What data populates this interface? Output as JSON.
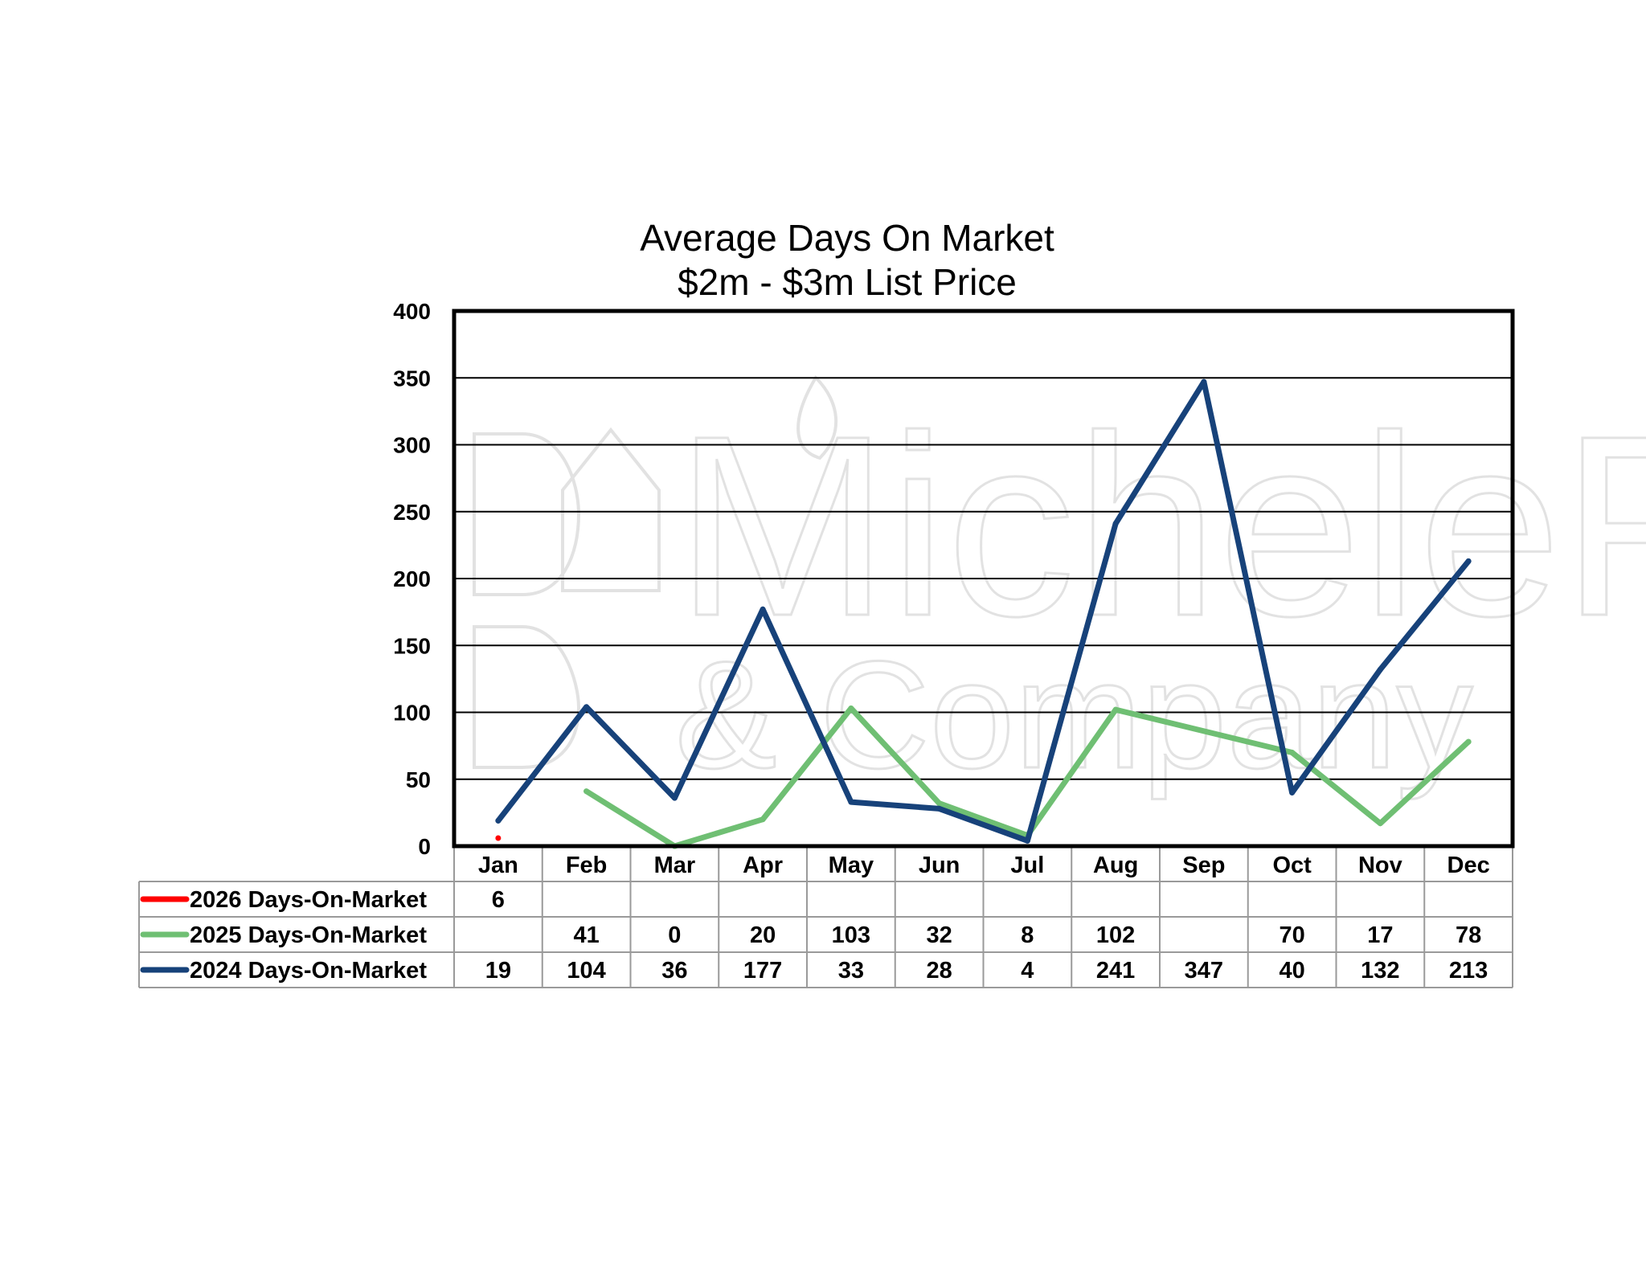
{
  "chart_data": {
    "type": "line",
    "title": [
      "Average Days On Market",
      "$2m - $3m List Price"
    ],
    "categories": [
      "Jan",
      "Feb",
      "Mar",
      "Apr",
      "May",
      "Jun",
      "Jul",
      "Aug",
      "Sep",
      "Oct",
      "Nov",
      "Dec"
    ],
    "ylim": [
      0,
      400
    ],
    "yticks": [
      0,
      50,
      100,
      150,
      200,
      250,
      300,
      350,
      400
    ],
    "grid": true,
    "legend": "data-table-left",
    "series": [
      {
        "name": "2026 Days-On-Market",
        "color": "#ff0000",
        "values": [
          6,
          null,
          null,
          null,
          null,
          null,
          null,
          null,
          null,
          null,
          null,
          null
        ]
      },
      {
        "name": "2025 Days-On-Market",
        "color": "#6fbf73",
        "values": [
          null,
          41,
          0,
          20,
          103,
          32,
          8,
          102,
          null,
          70,
          17,
          78
        ]
      },
      {
        "name": "2024 Days-On-Market",
        "color": "#17427a",
        "values": [
          19,
          104,
          36,
          177,
          33,
          28,
          4,
          241,
          347,
          40,
          132,
          213
        ]
      }
    ]
  },
  "watermark": {
    "line1": "MicheleFlory",
    "line2": "& Company"
  }
}
